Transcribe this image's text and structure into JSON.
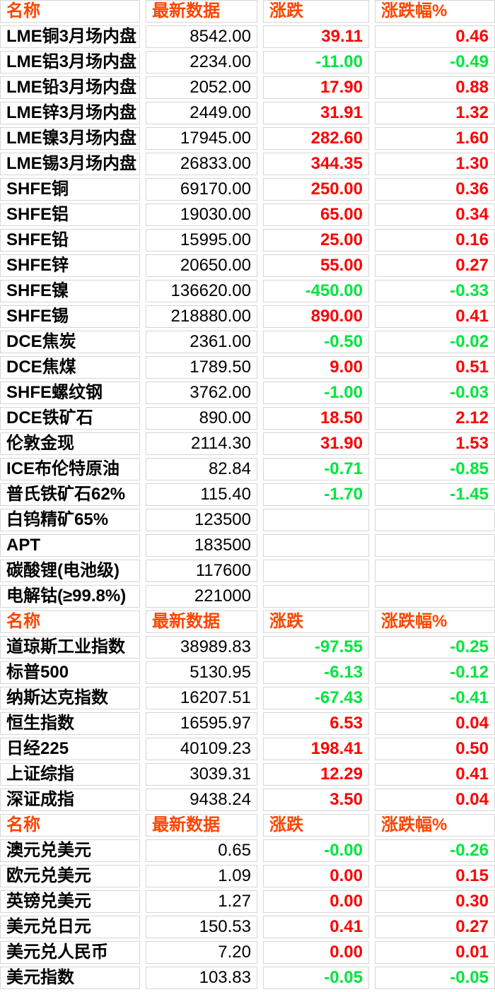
{
  "colors": {
    "header_text": "#ff4500",
    "up": "#fe0000",
    "down": "#00e53e",
    "name_text": "#000000",
    "value_text": "#000000",
    "border": "#d6d6d6",
    "background": "#ffffff"
  },
  "chart_data": {
    "type": "table",
    "tables": [
      {
        "headers": [
          "名称",
          "最新数据",
          "涨跌",
          "涨跌幅%"
        ],
        "rows": [
          {
            "name": "LME铜3月场内盘",
            "value": "8542.00",
            "change": "39.11",
            "pct": "0.46",
            "dir": "up"
          },
          {
            "name": "LME铝3月场内盘",
            "value": "2234.00",
            "change": "-11.00",
            "pct": "-0.49",
            "dir": "down"
          },
          {
            "name": "LME铅3月场内盘",
            "value": "2052.00",
            "change": "17.90",
            "pct": "0.88",
            "dir": "up"
          },
          {
            "name": "LME锌3月场内盘",
            "value": "2449.00",
            "change": "31.91",
            "pct": "1.32",
            "dir": "up"
          },
          {
            "name": "LME镍3月场内盘",
            "value": "17945.00",
            "change": "282.60",
            "pct": "1.60",
            "dir": "up"
          },
          {
            "name": "LME锡3月场内盘",
            "value": "26833.00",
            "change": "344.35",
            "pct": "1.30",
            "dir": "up"
          },
          {
            "name": "SHFE铜",
            "value": "69170.00",
            "change": "250.00",
            "pct": "0.36",
            "dir": "up"
          },
          {
            "name": "SHFE铝",
            "value": "19030.00",
            "change": "65.00",
            "pct": "0.34",
            "dir": "up"
          },
          {
            "name": "SHFE铅",
            "value": "15995.00",
            "change": "25.00",
            "pct": "0.16",
            "dir": "up"
          },
          {
            "name": "SHFE锌",
            "value": "20650.00",
            "change": "55.00",
            "pct": "0.27",
            "dir": "up"
          },
          {
            "name": "SHFE镍",
            "value": "136620.00",
            "change": "-450.00",
            "pct": "-0.33",
            "dir": "down"
          },
          {
            "name": "SHFE锡",
            "value": "218880.00",
            "change": "890.00",
            "pct": "0.41",
            "dir": "up"
          },
          {
            "name": "DCE焦炭",
            "value": "2361.00",
            "change": "-0.50",
            "pct": "-0.02",
            "dir": "down"
          },
          {
            "name": "DCE焦煤",
            "value": "1789.50",
            "change": "9.00",
            "pct": "0.51",
            "dir": "up"
          },
          {
            "name": "SHFE螺纹钢",
            "value": "3762.00",
            "change": "-1.00",
            "pct": "-0.03",
            "dir": "down"
          },
          {
            "name": "DCE铁矿石",
            "value": "890.00",
            "change": "18.50",
            "pct": "2.12",
            "dir": "up"
          },
          {
            "name": "伦敦金现",
            "value": "2114.30",
            "change": "31.90",
            "pct": "1.53",
            "dir": "up"
          },
          {
            "name": "ICE布伦特原油",
            "value": "82.84",
            "change": "-0.71",
            "pct": "-0.85",
            "dir": "down"
          },
          {
            "name": "普氏铁矿石62%",
            "value": "115.40",
            "change": "-1.70",
            "pct": "-1.45",
            "dir": "down"
          },
          {
            "name": "白钨精矿65%",
            "value": "123500",
            "change": "",
            "pct": "",
            "dir": "flat"
          },
          {
            "name": "APT",
            "value": "183500",
            "change": "",
            "pct": "",
            "dir": "flat"
          },
          {
            "name": "碳酸锂(电池级)",
            "value": "117600",
            "change": "",
            "pct": "",
            "dir": "flat"
          },
          {
            "name": "电解钴(≥99.8%)",
            "value": "221000",
            "change": "",
            "pct": "",
            "dir": "flat"
          }
        ]
      },
      {
        "headers": [
          "名称",
          "最新数据",
          "涨跌",
          "涨跌幅%"
        ],
        "rows": [
          {
            "name": "道琼斯工业指数",
            "value": "38989.83",
            "change": "-97.55",
            "pct": "-0.25",
            "dir": "down"
          },
          {
            "name": "标普500",
            "value": "5130.95",
            "change": "-6.13",
            "pct": "-0.12",
            "dir": "down"
          },
          {
            "name": "纳斯达克指数",
            "value": "16207.51",
            "change": "-67.43",
            "pct": "-0.41",
            "dir": "down"
          },
          {
            "name": "恒生指数",
            "value": "16595.97",
            "change": "6.53",
            "pct": "0.04",
            "dir": "up"
          },
          {
            "name": "日经225",
            "value": "40109.23",
            "change": "198.41",
            "pct": "0.50",
            "dir": "up"
          },
          {
            "name": "上证综指",
            "value": "3039.31",
            "change": "12.29",
            "pct": "0.41",
            "dir": "up"
          },
          {
            "name": "深证成指",
            "value": "9438.24",
            "change": "3.50",
            "pct": "0.04",
            "dir": "up"
          }
        ]
      },
      {
        "headers": [
          "名称",
          "最新数据",
          "涨跌",
          "涨跌幅%"
        ],
        "rows": [
          {
            "name": "澳元兑美元",
            "value": "0.65",
            "change": "-0.00",
            "pct": "-0.26",
            "dir": "down"
          },
          {
            "name": "欧元兑美元",
            "value": "1.09",
            "change": "0.00",
            "pct": "0.15",
            "dir": "up"
          },
          {
            "name": "英镑兑美元",
            "value": "1.27",
            "change": "0.00",
            "pct": "0.30",
            "dir": "up"
          },
          {
            "name": "美元兑日元",
            "value": "150.53",
            "change": "0.41",
            "pct": "0.27",
            "dir": "up"
          },
          {
            "name": "美元兑人民币",
            "value": "7.20",
            "change": "0.00",
            "pct": "0.01",
            "dir": "up"
          },
          {
            "name": "美元指数",
            "value": "103.83",
            "change": "-0.05",
            "pct": "-0.05",
            "dir": "down"
          }
        ]
      }
    ]
  }
}
